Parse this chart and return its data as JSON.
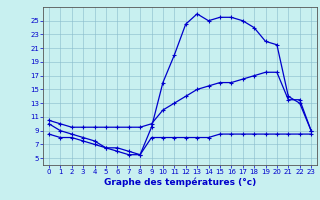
{
  "title": "Graphe des températures (°c)",
  "bg_color": "#c8f0f0",
  "plot_bg_color": "#c8f0f0",
  "line_color": "#0000cc",
  "grid_color": "#88bbcc",
  "spine_color": "#555555",
  "xlim": [
    -0.5,
    23.5
  ],
  "ylim": [
    4.0,
    27.0
  ],
  "xticks": [
    0,
    1,
    2,
    3,
    4,
    5,
    6,
    7,
    8,
    9,
    10,
    11,
    12,
    13,
    14,
    15,
    16,
    17,
    18,
    19,
    20,
    21,
    22,
    23
  ],
  "yticks": [
    5,
    7,
    9,
    11,
    13,
    15,
    17,
    19,
    21,
    23,
    25
  ],
  "curve_main_x": [
    0,
    1,
    2,
    3,
    4,
    5,
    6,
    7,
    8,
    9,
    10,
    11,
    12,
    13,
    14,
    15,
    16,
    17,
    18,
    19,
    20,
    21,
    22,
    23
  ],
  "curve_main_y": [
    10.0,
    9.0,
    8.5,
    8.0,
    7.5,
    6.5,
    6.0,
    5.5,
    5.5,
    9.5,
    16.0,
    20.0,
    24.5,
    26.0,
    25.0,
    25.5,
    25.5,
    25.0,
    24.0,
    22.0,
    21.5,
    14.0,
    13.0,
    9.0
  ],
  "curve_min_x": [
    0,
    1,
    2,
    3,
    4,
    5,
    6,
    7,
    8,
    9,
    10,
    11,
    12,
    13,
    14,
    15,
    16,
    17,
    18,
    19,
    20,
    21,
    22,
    23
  ],
  "curve_min_y": [
    8.5,
    8.0,
    8.0,
    7.5,
    7.0,
    6.5,
    6.5,
    6.0,
    5.5,
    8.0,
    8.0,
    8.0,
    8.0,
    8.0,
    8.0,
    8.5,
    8.5,
    8.5,
    8.5,
    8.5,
    8.5,
    8.5,
    8.5,
    8.5
  ],
  "curve_max_x": [
    0,
    1,
    2,
    3,
    4,
    5,
    6,
    7,
    8,
    9,
    10,
    11,
    12,
    13,
    14,
    15,
    16,
    17,
    18,
    19,
    20,
    21,
    22,
    23
  ],
  "curve_max_y": [
    10.5,
    10.0,
    9.5,
    9.5,
    9.5,
    9.5,
    9.5,
    9.5,
    9.5,
    10.0,
    12.0,
    13.0,
    14.0,
    15.0,
    15.5,
    16.0,
    16.0,
    16.5,
    17.0,
    17.5,
    17.5,
    13.5,
    13.5,
    9.0
  ],
  "tick_fontsize": 5.0,
  "xlabel_fontsize": 6.5,
  "figsize": [
    3.2,
    2.0
  ],
  "dpi": 100
}
